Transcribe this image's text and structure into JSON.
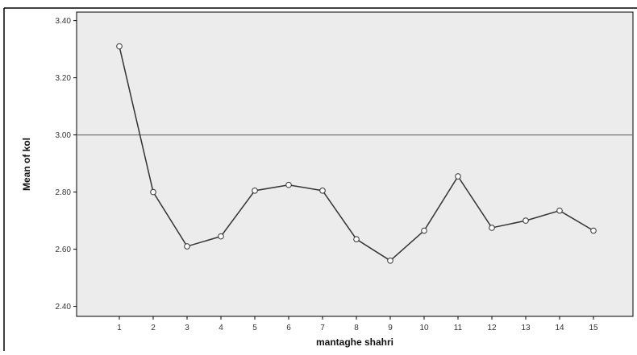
{
  "chart_data": {
    "type": "line",
    "title": "",
    "xlabel": "mantaghe shahri",
    "ylabel": "Mean of kol",
    "x": [
      1,
      2,
      3,
      4,
      5,
      6,
      7,
      8,
      9,
      10,
      11,
      12,
      13,
      14,
      15
    ],
    "x_tick_labels": [
      "1",
      "2",
      "3",
      "4",
      "5",
      "6",
      "7",
      "8",
      "9",
      "10",
      "11",
      "12",
      "13",
      "14",
      "15"
    ],
    "series": [
      {
        "name": "",
        "values": [
          3.31,
          2.8,
          2.61,
          2.645,
          2.805,
          2.825,
          2.805,
          2.635,
          2.56,
          2.665,
          2.855,
          2.675,
          2.7,
          2.735,
          2.665
        ]
      }
    ],
    "ylim": [
      2.365,
      3.43
    ],
    "y_ticks": [
      2.4,
      2.6,
      2.8,
      3.0,
      3.2,
      3.4
    ],
    "y_tick_labels": [
      "2.40",
      "2.60",
      "2.80",
      "3.00",
      "3.20",
      "3.40"
    ],
    "reference_line": 3.0,
    "grid": false,
    "legend": "none",
    "colors": {
      "plot_background": "#ececec",
      "line": "#333333",
      "reference_line": "#777777",
      "frame": "#000000"
    },
    "marker": "circle-open"
  }
}
